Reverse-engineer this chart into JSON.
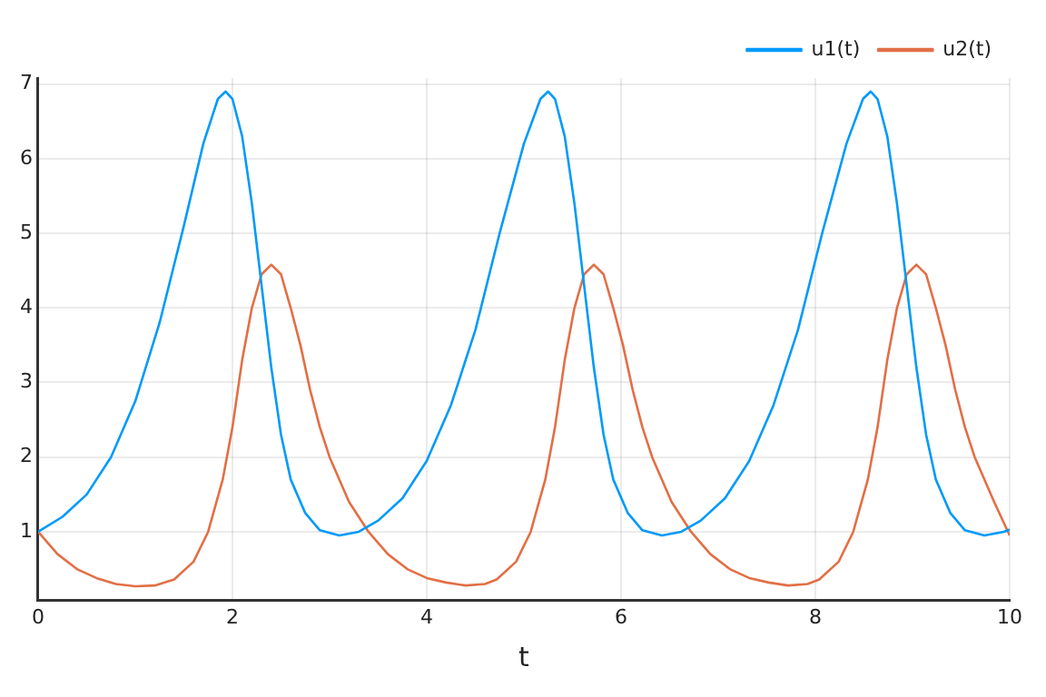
{
  "chart_data": {
    "type": "line",
    "xlabel": "t",
    "xlim": [
      0,
      10
    ],
    "xticks": [
      0,
      2,
      4,
      6,
      8,
      10
    ],
    "ylim": [
      0.08,
      7.08
    ],
    "yticks": [
      1,
      2,
      3,
      4,
      5,
      6,
      7
    ],
    "grid": true,
    "legend": "top right",
    "marker": "none",
    "line_style": "solid",
    "series": [
      {
        "name": "u1(t)",
        "color": "#009af9",
        "x": [
          0,
          0.25,
          0.5,
          0.75,
          1,
          1.25,
          1.5,
          1.7,
          1.85,
          1.93,
          2,
          2.1,
          2.2,
          2.3,
          2.4,
          2.5,
          2.6,
          2.75,
          2.9,
          3.1,
          3.3,
          3.5,
          3.75,
          4,
          4.25,
          4.5,
          4.75,
          5,
          5.17,
          5.25,
          5.32,
          5.42,
          5.52,
          5.62,
          5.72,
          5.82,
          5.92,
          6.07,
          6.22,
          6.42,
          6.62,
          6.82,
          7.07,
          7.32,
          7.57,
          7.82,
          8.07,
          8.32,
          8.49,
          8.57,
          8.64,
          8.74,
          8.84,
          8.94,
          9.04,
          9.14,
          9.24,
          9.39,
          9.54,
          9.74,
          9.94,
          10
        ],
        "values": [
          1,
          1.2,
          1.5,
          2,
          2.75,
          3.8,
          5.1,
          6.2,
          6.8,
          6.9,
          6.8,
          6.3,
          5.4,
          4.3,
          3.2,
          2.3,
          1.7,
          1.25,
          1.02,
          0.95,
          1,
          1.15,
          1.45,
          1.95,
          2.7,
          3.7,
          5,
          6.2,
          6.8,
          6.9,
          6.8,
          6.3,
          5.4,
          4.3,
          3.2,
          2.3,
          1.7,
          1.25,
          1.02,
          0.95,
          1,
          1.15,
          1.45,
          1.95,
          2.7,
          3.7,
          5,
          6.2,
          6.8,
          6.9,
          6.8,
          6.3,
          5.4,
          4.3,
          3.2,
          2.3,
          1.7,
          1.25,
          1.02,
          0.95,
          1,
          1.03
        ]
      },
      {
        "name": "u2(t)",
        "color": "#e26f46",
        "x": [
          0,
          0.2,
          0.4,
          0.6,
          0.8,
          1,
          1.2,
          1.4,
          1.6,
          1.75,
          1.9,
          2,
          2.1,
          2.2,
          2.3,
          2.4,
          2.5,
          2.6,
          2.7,
          2.8,
          2.9,
          3,
          3.2,
          3.4,
          3.6,
          3.8,
          4,
          4.2,
          4.4,
          4.6,
          4.72,
          4.92,
          5.07,
          5.22,
          5.32,
          5.42,
          5.52,
          5.62,
          5.72,
          5.82,
          5.92,
          6.02,
          6.12,
          6.22,
          6.32,
          6.52,
          6.72,
          6.92,
          7.12,
          7.32,
          7.52,
          7.72,
          7.92,
          8.04,
          8.24,
          8.39,
          8.54,
          8.64,
          8.74,
          8.84,
          8.94,
          9.04,
          9.14,
          9.24,
          9.34,
          9.44,
          9.54,
          9.64,
          9.84,
          10
        ],
        "values": [
          1,
          0.7,
          0.5,
          0.38,
          0.3,
          0.27,
          0.28,
          0.36,
          0.6,
          1,
          1.7,
          2.4,
          3.3,
          4,
          4.45,
          4.58,
          4.45,
          4,
          3.5,
          2.9,
          2.4,
          2,
          1.4,
          1,
          0.7,
          0.5,
          0.38,
          0.32,
          0.28,
          0.3,
          0.36,
          0.6,
          1,
          1.7,
          2.4,
          3.3,
          4,
          4.45,
          4.58,
          4.45,
          4,
          3.5,
          2.9,
          2.4,
          2,
          1.4,
          1,
          0.7,
          0.5,
          0.38,
          0.32,
          0.28,
          0.3,
          0.36,
          0.6,
          1,
          1.7,
          2.4,
          3.3,
          4,
          4.45,
          4.58,
          4.45,
          4,
          3.5,
          2.9,
          2.4,
          2,
          1.4,
          0.95
        ]
      }
    ]
  }
}
